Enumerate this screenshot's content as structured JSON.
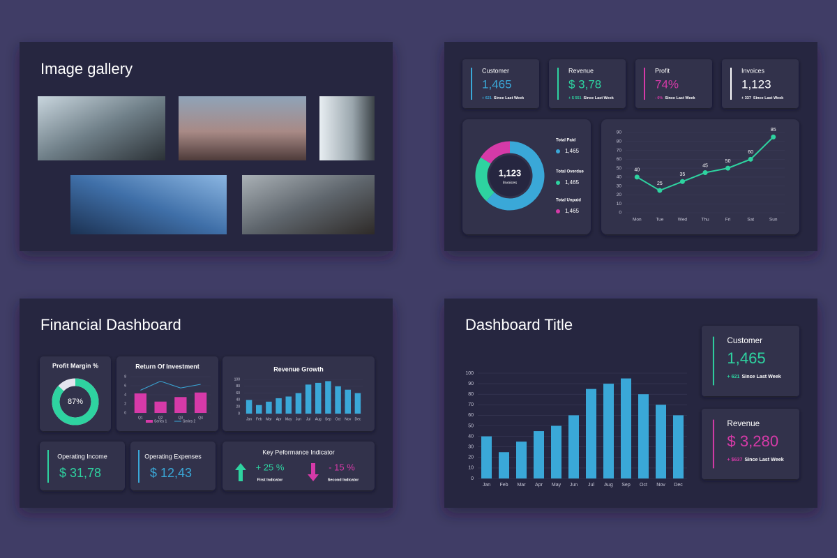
{
  "gallery": {
    "title": "Image gallery"
  },
  "overview": {
    "cards": [
      {
        "label": "Customer",
        "value": "1,465",
        "delta": "+ 621",
        "note": "Since Last Week",
        "color": "#3aa8d8"
      },
      {
        "label": "Revenue",
        "value": "$ 3,78",
        "delta": "+ $ 551",
        "note": "Since Last Week",
        "color": "#2ed3a0"
      },
      {
        "label": "Profit",
        "value": "74%",
        "delta": "- 6%",
        "note": "Since Last Week",
        "color": "#d63aa8"
      },
      {
        "label": "Invoices",
        "value": "1,123",
        "delta": "+ 337",
        "note": "Since Last Week",
        "color": "#ffffff"
      }
    ],
    "donut_amounts": [
      "1,465",
      "1,465",
      "1,465"
    ]
  },
  "financial": {
    "title": "Financial Dashboard",
    "metrics": [
      {
        "label": "Operating Income",
        "value": "$ 31,78",
        "color": "#2ed3a0"
      },
      {
        "label": "Operating Expenses",
        "value": "$ 12,43",
        "color": "#3aa8d8"
      }
    ],
    "kpi": {
      "title": "Key Peformance Indicator",
      "items": [
        {
          "value": "+ 25 %",
          "label": "First Indicator",
          "color": "#2ed3a0",
          "direction": "up"
        },
        {
          "value": "- 15 %",
          "label": "Second Indicator",
          "color": "#d63aa8",
          "direction": "down"
        }
      ]
    }
  },
  "dashboard": {
    "title": "Dashboard Title",
    "cards": [
      {
        "label": "Customer",
        "value": "1,465",
        "delta": "+ 621",
        "note": "Since Last Week",
        "color": "#2ed3a0"
      },
      {
        "label": "Revenue",
        "value": "$ 3,280",
        "delta": "+ $637",
        "note": "Since Last Week",
        "color": "#d63aa8"
      }
    ]
  },
  "chart_data": [
    {
      "type": "donut",
      "center_label": "1,123",
      "center_sublabel": "Invoices",
      "categories": [
        "Total Paid",
        "Total Overdue",
        "Total Unpaid"
      ],
      "values": [
        62,
        22,
        16
      ],
      "colors": [
        "#3aa8d8",
        "#2ed3a0",
        "#d63aa8"
      ]
    },
    {
      "type": "line",
      "x": [
        "Mon",
        "Tue",
        "Wed",
        "Thu",
        "Fri",
        "Sat",
        "Sun"
      ],
      "values": [
        40,
        25,
        35,
        45,
        50,
        60,
        85
      ],
      "ylim": [
        0,
        90
      ],
      "yticks": [
        0,
        10,
        20,
        30,
        40,
        50,
        60,
        70,
        80,
        90
      ],
      "grid": true,
      "color": "#2ed3a0",
      "data_labels": true
    },
    {
      "type": "gauge",
      "title": "Profit Margin %",
      "value": 87,
      "value_label": "87%",
      "lim": [
        0,
        100
      ],
      "color": "#2ed3a0",
      "track_color": "#e4e4ee"
    },
    {
      "type": "combo",
      "title": "Return Of Investment",
      "categories": [
        "Q1",
        "Q2",
        "Q3",
        "Q4"
      ],
      "series": [
        {
          "name": "Series 1",
          "kind": "bar",
          "color": "#d63aa8",
          "values": [
            4.3,
            2.5,
            3.5,
            4.5
          ]
        },
        {
          "name": "Series 2",
          "kind": "line",
          "color": "#3aa8d8",
          "values": [
            5,
            7,
            5.5,
            6.3
          ]
        }
      ],
      "ylim": [
        0,
        8
      ],
      "yticks": [
        0,
        2,
        4,
        6,
        8
      ],
      "grid": true
    },
    {
      "type": "bar",
      "title": "Revenue Growth",
      "categories": [
        "Jan",
        "Feb",
        "Mar",
        "Apr",
        "May",
        "Jun",
        "Jul",
        "Aug",
        "Sep",
        "Oct",
        "Nov",
        "Dec"
      ],
      "values": [
        40,
        25,
        35,
        45,
        50,
        60,
        85,
        90,
        95,
        80,
        70,
        60
      ],
      "ylim": [
        0,
        100
      ],
      "yticks": [
        0,
        20,
        40,
        60,
        80,
        100
      ],
      "grid": true,
      "color": "#3aa8d8"
    },
    {
      "type": "bar",
      "categories": [
        "Jan",
        "Feb",
        "Mar",
        "Apr",
        "May",
        "Jun",
        "Jul",
        "Aug",
        "Sep",
        "Oct",
        "Nov",
        "Dec"
      ],
      "values": [
        40,
        25,
        35,
        45,
        50,
        60,
        85,
        90,
        95,
        80,
        70,
        60
      ],
      "ylim": [
        0,
        100
      ],
      "yticks": [
        0,
        10,
        20,
        30,
        40,
        50,
        60,
        70,
        80,
        90,
        100
      ],
      "grid": true,
      "color": "#3aa8d8"
    }
  ]
}
